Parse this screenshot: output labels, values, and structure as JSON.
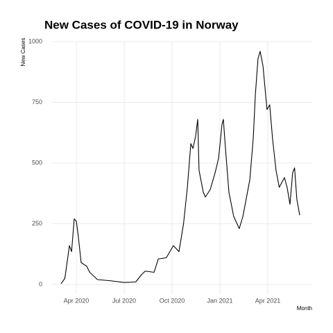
{
  "chart_data": {
    "type": "line",
    "title": "New Cases of COVID-19 in Norway",
    "y_label": "New Cases",
    "x_label": "Month",
    "x": [
      2020.17,
      2020.19,
      2020.214,
      2020.225,
      2020.239,
      2020.25,
      2020.26,
      2020.275,
      2020.304,
      2020.32,
      2020.36,
      2020.43,
      2020.5,
      2020.56,
      2020.59,
      2020.61,
      2020.656,
      2020.678,
      2020.72,
      2020.757,
      2020.786,
      2020.81,
      2020.83,
      2020.848,
      2020.859,
      2020.873,
      2020.884,
      2020.891,
      2020.913,
      2020.924,
      2020.949,
      2020.975,
      2020.993,
      2021.011,
      2021.018,
      2021.029,
      2021.047,
      2021.072,
      2021.101,
      2021.12,
      2021.156,
      2021.174,
      2021.185,
      2021.199,
      2021.21,
      2021.225,
      2021.246,
      2021.26,
      2021.275,
      2021.293,
      2021.31,
      2021.337,
      2021.351,
      2021.366,
      2021.38,
      2021.39,
      2021.402,
      2021.417
    ],
    "series": [
      {
        "name": "New Cases",
        "color": "#000000",
        "values": [
          3,
          25,
          160,
          135,
          270,
          260,
          200,
          90,
          75,
          50,
          20,
          15,
          8,
          10,
          40,
          55,
          50,
          105,
          110,
          160,
          135,
          250,
          400,
          580,
          560,
          610,
          680,
          470,
          380,
          360,
          390,
          460,
          520,
          660,
          680,
          560,
          380,
          280,
          230,
          280,
          430,
          600,
          780,
          930,
          960,
          900,
          720,
          740,
          600,
          470,
          400,
          440,
          400,
          330,
          460,
          480,
          350,
          285
        ]
      }
    ],
    "xlim": [
      2020.123,
      2021.482
    ],
    "xticks": [
      {
        "value": 2020.25,
        "label": "Apr 2020"
      },
      {
        "value": 2020.5,
        "label": "Jul 2020"
      },
      {
        "value": 2020.75,
        "label": "Oct 2020"
      },
      {
        "value": 2021.0,
        "label": "Jan 2021"
      },
      {
        "value": 2021.25,
        "label": "Apr 2021"
      }
    ],
    "ylim": [
      -40,
      1000
    ],
    "yticks": [
      0,
      250,
      500,
      750,
      1000
    ],
    "grid": true
  }
}
